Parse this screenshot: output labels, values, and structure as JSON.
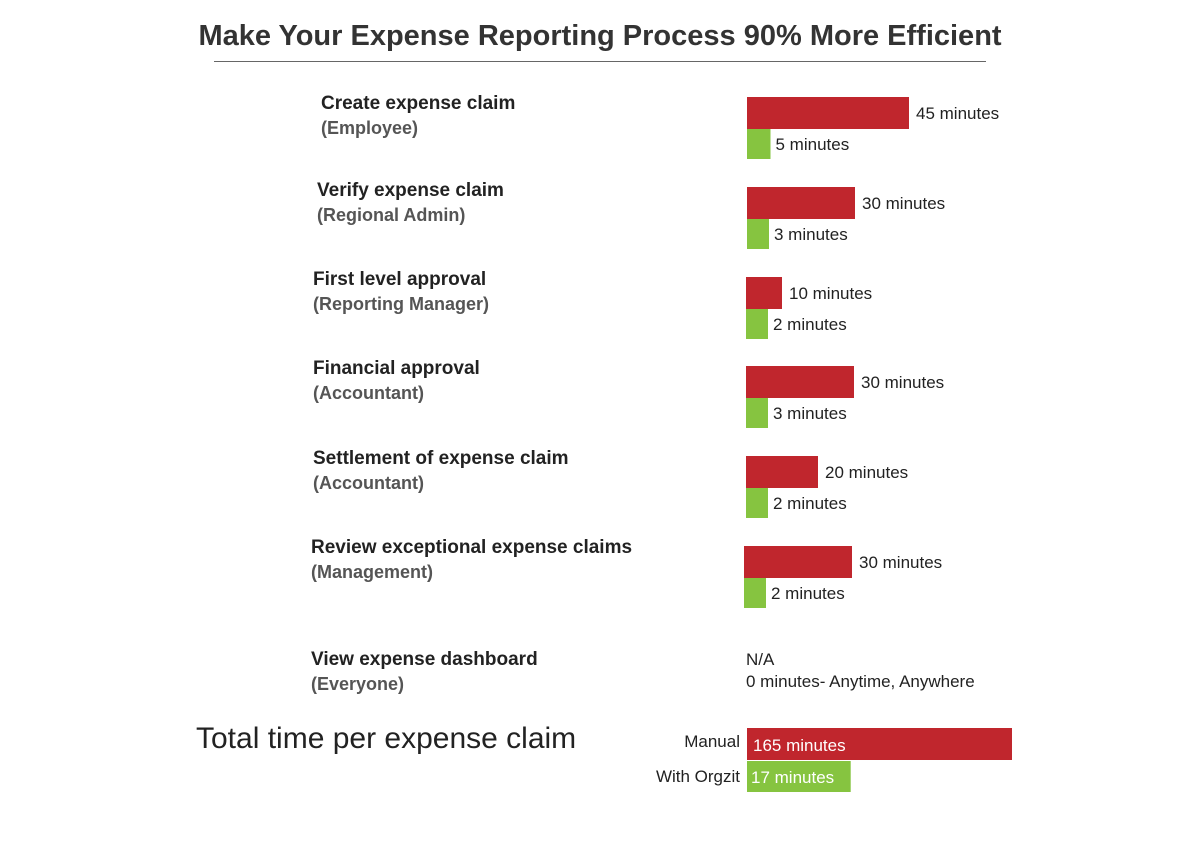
{
  "title": "Make Your Expense Reporting Process 90% More Efficient",
  "colors": {
    "manual": "#c0262d",
    "orgzit": "#86c440"
  },
  "steps": [
    {
      "name": "Create expense claim",
      "role": "(Employee)"
    },
    {
      "name": "Verify expense claim",
      "role": "(Regional Admin)"
    },
    {
      "name": "First level approval",
      "role": "(Reporting Manager)"
    },
    {
      "name": "Financial approval",
      "role": "(Accountant)"
    },
    {
      "name": "Settlement of expense claim",
      "role": "(Accountant)"
    },
    {
      "name": "Review exceptional expense claims",
      "role": "(Management)"
    },
    {
      "name": "View expense dashboard",
      "role": "(Everyone)"
    }
  ],
  "dashboard_note": {
    "manual": "N/A",
    "orgzit": "0 minutes- Anytime, Anywhere"
  },
  "total": {
    "label": "Total time per expense claim",
    "manual_label": "Manual",
    "orgzit_label": "With Orgzit"
  },
  "chart_data": {
    "type": "bar",
    "orientation": "horizontal",
    "title": "Make Your Expense Reporting Process 90% More Efficient",
    "unit": "minutes",
    "categories": [
      "Create expense claim (Employee)",
      "Verify expense claim (Regional Admin)",
      "First level approval (Reporting Manager)",
      "Financial approval (Accountant)",
      "Settlement of expense claim (Accountant)",
      "Review exceptional expense claims (Management)"
    ],
    "series": [
      {
        "values": [
          45,
          30,
          10,
          30,
          20,
          30
        ],
        "labels": [
          "45 minutes",
          "30 minutes",
          "10 minutes",
          "30 minutes",
          "20 minutes",
          "30 minutes"
        ]
      },
      {
        "values": [
          5,
          3,
          2,
          3,
          2,
          2
        ],
        "labels": [
          "5 minutes",
          "3 minutes",
          "2 minutes",
          "3 minutes",
          "2 minutes",
          "2 minutes"
        ]
      }
    ],
    "totals": {
      "manual": {
        "value": 165,
        "label": "165 minutes"
      },
      "orgzit": {
        "value": 17,
        "label": "17 minutes"
      }
    }
  }
}
